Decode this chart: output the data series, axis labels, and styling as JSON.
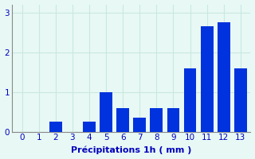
{
  "categories": [
    0,
    1,
    2,
    3,
    4,
    5,
    6,
    7,
    8,
    9,
    10,
    11,
    12,
    13
  ],
  "values": [
    0,
    0,
    0.25,
    0,
    0.25,
    1.0,
    0.6,
    0.35,
    0.6,
    0.6,
    1.6,
    2.65,
    2.75,
    1.6
  ],
  "bar_color": "#0033dd",
  "background_color": "#e8f8f5",
  "grid_color": "#c8e8e0",
  "xlabel": "Précipitations 1h ( mm )",
  "ylim": [
    0,
    3.2
  ],
  "yticks": [
    0,
    1,
    2,
    3
  ],
  "xlim": [
    -0.6,
    13.6
  ],
  "xlabel_fontsize": 8,
  "tick_fontsize": 7.5,
  "tick_color": "#0000bb",
  "axis_color": "#888888"
}
